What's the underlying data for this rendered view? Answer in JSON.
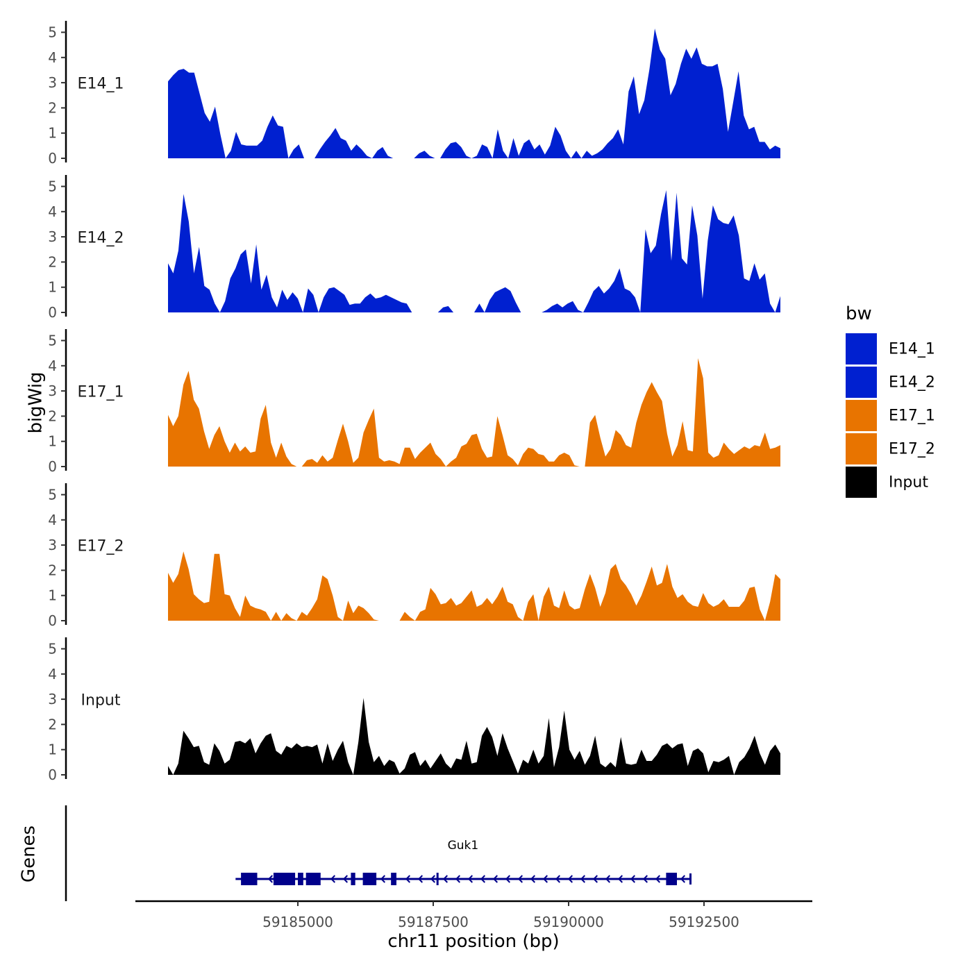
{
  "chart_data": {
    "type": "area",
    "y_axis_title": "bigWig",
    "genes_axis_title": "Genes",
    "xlabel": "chr11 position (bp)",
    "xlim": [
      59182000,
      59194500
    ],
    "x_ticks": [
      59185000,
      59187500,
      59190000,
      59192500
    ],
    "x_tick_labels": [
      "59185000",
      "59187500",
      "59190000",
      "59192500"
    ],
    "ylim": [
      0,
      5
    ],
    "y_ticks": [
      0,
      1,
      2,
      3,
      4,
      5
    ],
    "y_tick_labels": [
      "0",
      "1",
      "2",
      "3",
      "4",
      "5"
    ],
    "legend": {
      "title": "bw",
      "entries": [
        {
          "label": "E14_1",
          "color": "#0020d0"
        },
        {
          "label": "E14_2",
          "color": "#0020d0"
        },
        {
          "label": "E17_1",
          "color": "#e87400"
        },
        {
          "label": "E17_2",
          "color": "#e87400"
        },
        {
          "label": "Input",
          "color": "#000000"
        }
      ]
    },
    "tracks": [
      {
        "name": "E14_1",
        "label": "E14_1",
        "color": "#0020d0",
        "values": [
          3.05,
          3.3,
          3.5,
          3.55,
          3.4,
          3.4,
          2.6,
          1.8,
          1.45,
          2.05,
          0.95,
          0.0,
          0.3,
          1.05,
          0.55,
          0.5,
          0.5,
          0.5,
          0.7,
          1.25,
          1.7,
          1.3,
          1.25,
          0.0,
          0.35,
          0.55,
          0.0,
          0.0,
          0.0,
          0.35,
          0.65,
          0.9,
          1.2,
          0.8,
          0.7,
          0.3,
          0.55,
          0.35,
          0.1,
          0.0,
          0.3,
          0.45,
          0.1,
          0.0,
          0.0,
          0.0,
          0.0,
          0.0,
          0.2,
          0.3,
          0.1,
          0.0,
          0.0,
          0.35,
          0.6,
          0.65,
          0.45,
          0.1,
          0.0,
          0.1,
          0.55,
          0.45,
          0.0,
          1.15,
          0.3,
          0.0,
          0.8,
          0.1,
          0.6,
          0.75,
          0.35,
          0.55,
          0.15,
          0.5,
          1.25,
          0.9,
          0.3,
          0.0,
          0.3,
          0.0,
          0.3,
          0.1,
          0.2,
          0.35,
          0.6,
          0.8,
          1.15,
          0.55,
          2.65,
          3.25,
          1.75,
          2.3,
          3.55,
          5.15,
          4.3,
          3.95,
          2.5,
          2.95,
          3.75,
          4.35,
          3.95,
          4.4,
          3.75,
          3.65,
          3.65,
          3.75,
          2.75,
          1.05,
          2.25,
          3.45,
          1.7,
          1.15,
          1.25,
          0.65,
          0.65,
          0.35,
          0.5,
          0.4
        ]
      },
      {
        "name": "E14_2",
        "label": "E14_2",
        "color": "#0020d0",
        "values": [
          1.95,
          1.55,
          2.45,
          4.7,
          3.6,
          1.55,
          2.6,
          1.05,
          0.9,
          0.35,
          0.0,
          0.45,
          1.35,
          1.75,
          2.3,
          2.5,
          1.15,
          2.7,
          0.9,
          1.5,
          0.6,
          0.2,
          0.9,
          0.5,
          0.8,
          0.55,
          0.0,
          0.95,
          0.7,
          0.0,
          0.6,
          0.95,
          1.0,
          0.85,
          0.7,
          0.3,
          0.35,
          0.35,
          0.6,
          0.75,
          0.55,
          0.6,
          0.7,
          0.6,
          0.5,
          0.4,
          0.35,
          0.0,
          0.0,
          0.0,
          0.0,
          0.0,
          0.0,
          0.2,
          0.25,
          0.0,
          0.0,
          0.0,
          0.0,
          0.0,
          0.35,
          0.0,
          0.5,
          0.8,
          0.9,
          1.0,
          0.85,
          0.4,
          0.0,
          0.0,
          0.0,
          0.0,
          0.0,
          0.1,
          0.25,
          0.35,
          0.2,
          0.35,
          0.45,
          0.1,
          0.0,
          0.4,
          0.85,
          1.05,
          0.75,
          0.95,
          1.25,
          1.75,
          0.95,
          0.85,
          0.6,
          0.0,
          3.3,
          2.35,
          2.65,
          3.9,
          4.85,
          2.05,
          4.75,
          2.15,
          1.9,
          4.25,
          3.05,
          0.55,
          2.85,
          4.25,
          3.7,
          3.55,
          3.5,
          3.85,
          3.05,
          1.35,
          1.25,
          1.95,
          1.3,
          1.55,
          0.35,
          0.0,
          0.65
        ]
      },
      {
        "name": "E17_1",
        "label": "E17_1",
        "color": "#e87400",
        "values": [
          2.05,
          1.6,
          2.0,
          3.25,
          3.8,
          2.65,
          2.3,
          1.4,
          0.7,
          1.25,
          1.6,
          1.0,
          0.55,
          0.95,
          0.6,
          0.8,
          0.55,
          0.6,
          1.9,
          2.45,
          0.95,
          0.35,
          0.95,
          0.4,
          0.1,
          0.0,
          0.0,
          0.25,
          0.3,
          0.15,
          0.45,
          0.2,
          0.35,
          1.05,
          1.7,
          1.0,
          0.15,
          0.35,
          1.35,
          1.85,
          2.3,
          0.35,
          0.2,
          0.25,
          0.2,
          0.1,
          0.75,
          0.75,
          0.3,
          0.55,
          0.75,
          0.95,
          0.5,
          0.3,
          0.0,
          0.2,
          0.35,
          0.8,
          0.9,
          1.25,
          1.3,
          0.7,
          0.35,
          0.4,
          2.0,
          1.25,
          0.45,
          0.3,
          0.05,
          0.5,
          0.75,
          0.7,
          0.5,
          0.45,
          0.2,
          0.2,
          0.45,
          0.55,
          0.45,
          0.05,
          0.0,
          0.0,
          1.75,
          2.05,
          1.15,
          0.4,
          0.7,
          1.45,
          1.25,
          0.85,
          0.75,
          1.75,
          2.45,
          2.95,
          3.35,
          2.95,
          2.6,
          1.3,
          0.4,
          0.85,
          1.8,
          0.65,
          0.6,
          4.3,
          3.5,
          0.55,
          0.35,
          0.45,
          0.95,
          0.7,
          0.5,
          0.65,
          0.8,
          0.7,
          0.85,
          0.8,
          1.35,
          0.7,
          0.75,
          0.85
        ]
      },
      {
        "name": "E17_2",
        "label": "E17_2",
        "color": "#e87400",
        "values": [
          1.9,
          1.5,
          1.85,
          2.75,
          2.05,
          1.05,
          0.85,
          0.7,
          0.75,
          2.65,
          2.65,
          1.05,
          1.0,
          0.5,
          0.15,
          1.0,
          0.6,
          0.5,
          0.45,
          0.35,
          0.0,
          0.35,
          0.0,
          0.3,
          0.1,
          0.0,
          0.35,
          0.2,
          0.5,
          0.85,
          1.8,
          1.65,
          1.0,
          0.15,
          0.0,
          0.8,
          0.3,
          0.6,
          0.5,
          0.3,
          0.05,
          0.0,
          0.0,
          0.0,
          0.0,
          0.0,
          0.35,
          0.15,
          0.0,
          0.35,
          0.45,
          1.3,
          1.05,
          0.65,
          0.7,
          0.9,
          0.6,
          0.7,
          0.95,
          1.2,
          0.55,
          0.65,
          0.9,
          0.65,
          0.95,
          1.35,
          0.75,
          0.65,
          0.15,
          0.0,
          0.75,
          1.05,
          0.0,
          0.95,
          1.35,
          0.6,
          0.5,
          1.2,
          0.6,
          0.45,
          0.5,
          1.25,
          1.85,
          1.3,
          0.55,
          1.1,
          2.05,
          2.25,
          1.65,
          1.4,
          1.05,
          0.6,
          1.0,
          1.55,
          2.15,
          1.4,
          1.5,
          2.25,
          1.35,
          0.9,
          1.05,
          0.75,
          0.6,
          0.55,
          1.1,
          0.7,
          0.55,
          0.65,
          0.85,
          0.55,
          0.55,
          0.55,
          0.8,
          1.3,
          1.35,
          0.45,
          0.0,
          0.75,
          1.85,
          1.65
        ]
      },
      {
        "name": "Input",
        "label": "Input",
        "color": "#000000",
        "values": [
          0.35,
          0.0,
          0.45,
          1.75,
          1.45,
          1.1,
          1.15,
          0.5,
          0.4,
          1.25,
          0.95,
          0.45,
          0.6,
          1.3,
          1.35,
          1.25,
          1.45,
          0.85,
          1.25,
          1.55,
          1.65,
          0.95,
          0.8,
          1.15,
          1.05,
          1.25,
          1.1,
          1.15,
          1.1,
          1.2,
          0.45,
          1.25,
          0.55,
          1.0,
          1.35,
          0.5,
          0.0,
          1.3,
          3.05,
          1.3,
          0.5,
          0.75,
          0.35,
          0.6,
          0.5,
          0.05,
          0.25,
          0.8,
          0.9,
          0.35,
          0.6,
          0.25,
          0.55,
          0.85,
          0.45,
          0.25,
          0.65,
          0.6,
          1.35,
          0.45,
          0.5,
          1.55,
          1.9,
          1.5,
          0.75,
          1.65,
          1.05,
          0.55,
          0.05,
          0.6,
          0.45,
          1.0,
          0.45,
          0.75,
          2.25,
          0.3,
          1.1,
          2.55,
          1.0,
          0.6,
          0.95,
          0.4,
          0.75,
          1.55,
          0.45,
          0.3,
          0.5,
          0.3,
          1.5,
          0.45,
          0.4,
          0.45,
          1.0,
          0.55,
          0.55,
          0.8,
          1.15,
          1.25,
          1.05,
          1.2,
          1.25,
          0.35,
          0.95,
          1.05,
          0.85,
          0.1,
          0.55,
          0.5,
          0.6,
          0.75,
          0.0,
          0.5,
          0.7,
          1.05,
          1.55,
          0.85,
          0.4,
          0.95,
          1.2,
          0.85
        ]
      }
    ],
    "genes": [
      {
        "name": "Guk1",
        "start": 59183850,
        "end": 59192250,
        "strand": "-",
        "color": "#00008b",
        "exons": [
          [
            59183950,
            59184250
          ],
          [
            59184550,
            59184950
          ],
          [
            59185000,
            59185100
          ],
          [
            59185150,
            59185420
          ],
          [
            59185980,
            59186060
          ],
          [
            59186200,
            59186450
          ],
          [
            59186720,
            59186820
          ],
          [
            59187560,
            59187580
          ],
          [
            59191800,
            59192000
          ]
        ]
      }
    ]
  }
}
